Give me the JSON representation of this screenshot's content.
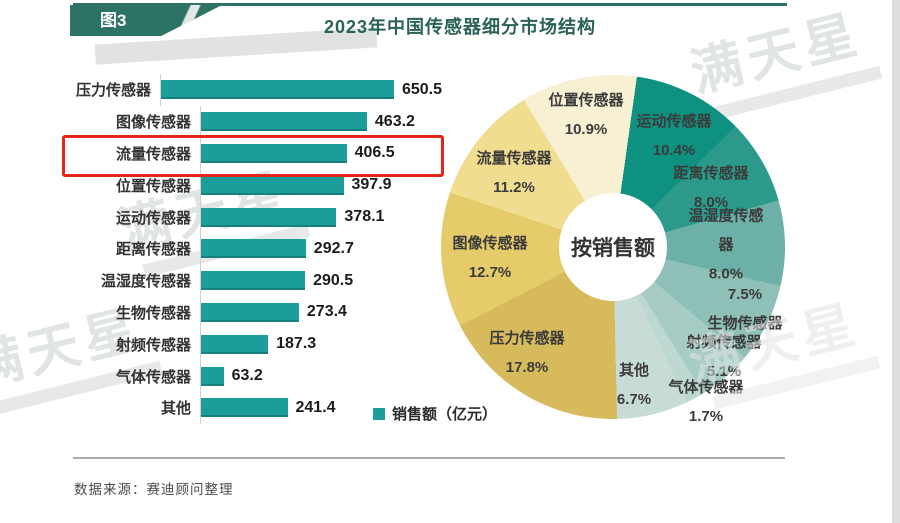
{
  "figure_badge": "图3",
  "title": "2023年中国传感器细分市场结构",
  "source": "数据来源：赛迪顾问整理",
  "watermark": "满天星",
  "legend": {
    "label": "销售额（亿元）"
  },
  "center_label": "按销售额",
  "colors": {
    "bar": "#1d9d9a",
    "accent_teal": "#2c7265",
    "highlight_red": "#e42618"
  },
  "chart_data": [
    {
      "type": "bar",
      "orientation": "horizontal",
      "title": "销售额（亿元）",
      "categories": [
        "压力传感器",
        "图像传感器",
        "流量传感器",
        "位置传感器",
        "运动传感器",
        "距离传感器",
        "温湿度传感器",
        "生物传感器",
        "射频传感器",
        "气体传感器",
        "其他"
      ],
      "values": [
        650.5,
        463.2,
        406.5,
        397.9,
        378.1,
        292.7,
        290.5,
        273.4,
        187.3,
        63.2,
        241.4
      ],
      "unit": "亿元",
      "highlighted_category": "流量传感器",
      "highlighted_value": 406.5
    },
    {
      "type": "pie",
      "donut": true,
      "title": "按销售额",
      "start_angle_deg": 8,
      "slices": [
        {
          "label": "运动传感器",
          "pct": 10.4,
          "pct_label": "10.4%",
          "color": "#0e9181"
        },
        {
          "label": "距离传感器",
          "pct": 8.0,
          "pct_label": "8.0%",
          "color": "#2b9a8b"
        },
        {
          "label": "温湿度传感器",
          "pct": 8.0,
          "pct_label": "8.0%",
          "color": "#6cb0a7"
        },
        {
          "label": "生物传感器",
          "pct": 7.5,
          "pct_label": "7.5%",
          "color": "#8ec0b8"
        },
        {
          "label": "射频传感器",
          "pct": 5.1,
          "pct_label": "5.1%",
          "color": "#a6ccc5"
        },
        {
          "label": "气体传感器",
          "pct": 1.7,
          "pct_label": "1.7%",
          "color": "#bdd8d1"
        },
        {
          "label": "其他",
          "pct": 6.7,
          "pct_label": "6.7%",
          "color": "#c8dcd7"
        },
        {
          "label": "压力传感器",
          "pct": 17.8,
          "pct_label": "17.8%",
          "color": "#d7ba5b"
        },
        {
          "label": "图像传感器",
          "pct": 12.7,
          "pct_label": "12.7%",
          "color": "#e5cb6a"
        },
        {
          "label": "流量传感器",
          "pct": 11.2,
          "pct_label": "11.2%",
          "color": "#f0dd90"
        },
        {
          "label": "位置传感器",
          "pct": 10.9,
          "pct_label": "10.9%",
          "color": "#f7f0d2"
        }
      ]
    }
  ]
}
